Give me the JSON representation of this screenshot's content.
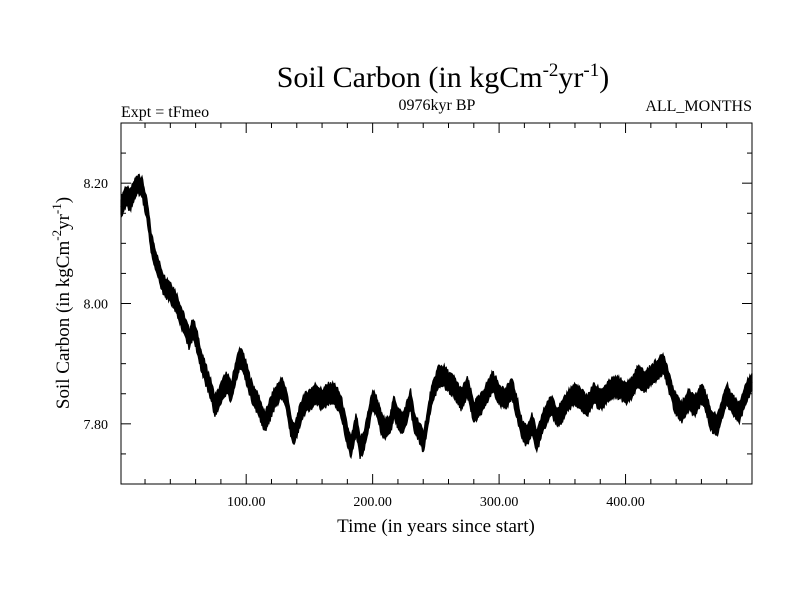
{
  "chart_data": {
    "type": "line",
    "title": "Soil Carbon (in kgCm",
    "title_sup1": "-2",
    "title_mid": "yr",
    "title_sup2": "-1",
    "title_end": ")",
    "subtitle_left": "Expt = tFmeo",
    "subtitle_center": "0976kyr BP",
    "subtitle_right": "ALL_MONTHS",
    "xlabel": "Time (in years since start)",
    "ylabel": "Soil Carbon (in kgCm",
    "ylabel_sup1": "-2",
    "ylabel_mid": "yr",
    "ylabel_sup2": "-1",
    "ylabel_end": ")",
    "xlim": [
      1,
      500
    ],
    "ylim": [
      7.7,
      8.3
    ],
    "xticks": [
      {
        "value": 100,
        "label": "100.00"
      },
      {
        "value": 200,
        "label": "200.00"
      },
      {
        "value": 300,
        "label": "300.00"
      },
      {
        "value": 400,
        "label": "400.00"
      }
    ],
    "yticks": [
      {
        "value": 7.8,
        "label": "7.80"
      },
      {
        "value": 8.0,
        "label": "8.00"
      },
      {
        "value": 8.2,
        "label": "8.20"
      }
    ],
    "band_halfwidth": 0.012,
    "series": [
      {
        "name": "Soil Carbon",
        "x": [
          1,
          5,
          8,
          12,
          15,
          18,
          22,
          25,
          30,
          35,
          40,
          45,
          50,
          55,
          58,
          62,
          65,
          70,
          73,
          75,
          78,
          82,
          85,
          88,
          92,
          95,
          98,
          102,
          105,
          110,
          115,
          118,
          122,
          125,
          128,
          132,
          135,
          138,
          142,
          145,
          150,
          155,
          160,
          165,
          170,
          175,
          180,
          183,
          187,
          190,
          193,
          197,
          200,
          203,
          207,
          210,
          214,
          217,
          220,
          224,
          227,
          230,
          233,
          236,
          240,
          243,
          246,
          249,
          252,
          256,
          260,
          265,
          270,
          275,
          280,
          285,
          290,
          295,
          300,
          305,
          310,
          315,
          318,
          322,
          326,
          330,
          334,
          338,
          342,
          346,
          350,
          355,
          360,
          365,
          370,
          375,
          380,
          385,
          390,
          395,
          400,
          405,
          410,
          415,
          420,
          425,
          430,
          433,
          437,
          440,
          445,
          450,
          455,
          460,
          463,
          467,
          470,
          473,
          477,
          480,
          485,
          490,
          495,
          500
        ],
        "values": [
          8.16,
          8.18,
          8.17,
          8.19,
          8.2,
          8.19,
          8.15,
          8.1,
          8.06,
          8.03,
          8.02,
          8.0,
          7.97,
          7.94,
          7.96,
          7.93,
          7.9,
          7.87,
          7.85,
          7.83,
          7.84,
          7.86,
          7.87,
          7.85,
          7.89,
          7.91,
          7.9,
          7.87,
          7.85,
          7.83,
          7.8,
          7.82,
          7.84,
          7.85,
          7.86,
          7.84,
          7.8,
          7.78,
          7.81,
          7.83,
          7.84,
          7.85,
          7.84,
          7.85,
          7.85,
          7.83,
          7.78,
          7.76,
          7.8,
          7.76,
          7.77,
          7.81,
          7.84,
          7.83,
          7.8,
          7.79,
          7.8,
          7.83,
          7.81,
          7.8,
          7.82,
          7.84,
          7.8,
          7.79,
          7.77,
          7.8,
          7.84,
          7.86,
          7.88,
          7.88,
          7.87,
          7.86,
          7.84,
          7.86,
          7.82,
          7.83,
          7.85,
          7.87,
          7.85,
          7.84,
          7.86,
          7.82,
          7.79,
          7.78,
          7.8,
          7.77,
          7.8,
          7.82,
          7.83,
          7.81,
          7.82,
          7.84,
          7.85,
          7.84,
          7.83,
          7.85,
          7.84,
          7.85,
          7.86,
          7.86,
          7.85,
          7.86,
          7.88,
          7.87,
          7.88,
          7.89,
          7.9,
          7.88,
          7.85,
          7.83,
          7.82,
          7.84,
          7.83,
          7.85,
          7.84,
          7.81,
          7.8,
          7.8,
          7.83,
          7.85,
          7.83,
          7.82,
          7.85,
          7.87
        ]
      }
    ]
  }
}
